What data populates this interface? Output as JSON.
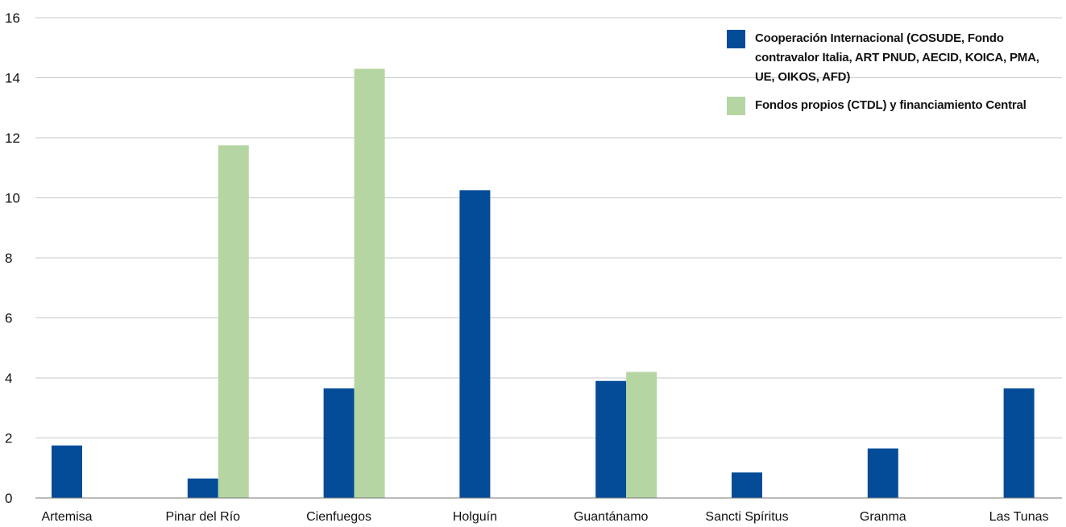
{
  "chart_data": {
    "type": "bar",
    "categories": [
      "Artemisa",
      "Pinar del Río",
      "Cienfuegos",
      "Holguín",
      "Guantánamo",
      "Sancti Spíritus",
      "Granma",
      "Las Tunas"
    ],
    "series": [
      {
        "name": "Cooperación Internacional (COSUDE, Fondo contravalor Italia, ART PNUD, AECID, KOICA, PMA, UE, OIKOS, AFD)",
        "color": "#044c98",
        "values": [
          1.75,
          0.65,
          3.65,
          10.25,
          3.9,
          0.85,
          1.65,
          3.65
        ]
      },
      {
        "name": "Fondos propios (CTDL) y financiamiento Central",
        "color": "#b5d6a3",
        "values": [
          0,
          11.75,
          14.3,
          0,
          4.2,
          0,
          0,
          0
        ]
      }
    ],
    "ylim": [
      0,
      16
    ],
    "yticks": [
      0,
      2,
      4,
      6,
      8,
      10,
      12,
      14,
      16
    ],
    "grid": true,
    "legend_position": "top-right",
    "title": "",
    "xlabel": "",
    "ylabel": ""
  }
}
